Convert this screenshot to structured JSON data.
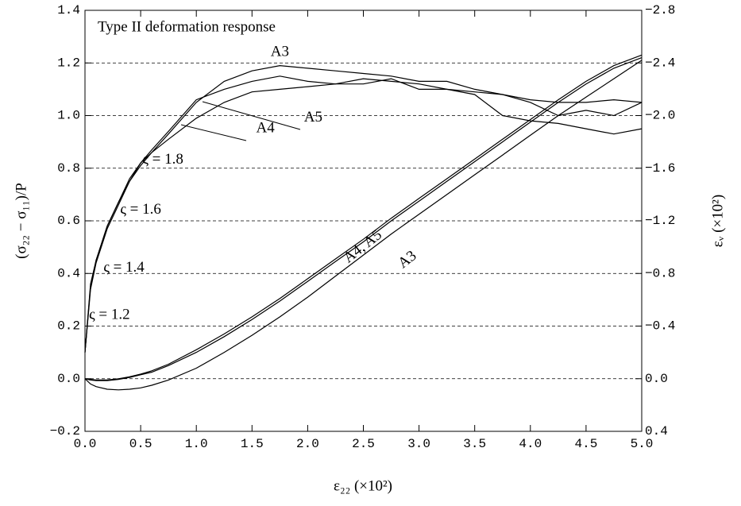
{
  "chart_data": {
    "type": "line",
    "title": "Type II deformation response",
    "x_label": "ε₂₂ (×10²)",
    "y_label": "(σ₂₂ − σ₁₁)/P",
    "y2_label": "εᵥ  (×10²)",
    "x": [
      0,
      0.05,
      0.1,
      0.2,
      0.3,
      0.4,
      0.5,
      0.6,
      0.75,
      1.0,
      1.25,
      1.5,
      1.75,
      2.0,
      2.25,
      2.5,
      2.75,
      3.0,
      3.25,
      3.5,
      3.75,
      4.0,
      4.25,
      4.5,
      4.75,
      5.0
    ],
    "series": [
      {
        "color": "#000",
        "values": [
          0.1,
          0.35,
          0.45,
          0.58,
          0.67,
          0.75,
          0.81,
          0.86,
          0.93,
          1.05,
          1.13,
          1.17,
          1.19,
          1.18,
          1.17,
          1.16,
          1.15,
          1.13,
          1.13,
          1.1,
          1.08,
          1.06,
          1.05,
          1.05,
          1.06,
          1.05
        ]
      },
      {
        "color": "#000",
        "values": [
          0.1,
          0.34,
          0.44,
          0.57,
          0.66,
          0.75,
          0.82,
          0.86,
          0.91,
          0.99,
          1.05,
          1.09,
          1.1,
          1.11,
          1.12,
          1.12,
          1.14,
          1.1,
          1.1,
          1.08,
          1.0,
          0.98,
          0.97,
          0.95,
          0.93,
          0.95
        ]
      },
      {
        "color": "#000",
        "values": [
          0.1,
          0.36,
          0.45,
          0.58,
          0.67,
          0.76,
          0.82,
          0.87,
          0.94,
          1.06,
          1.1,
          1.13,
          1.15,
          1.13,
          1.12,
          1.14,
          1.13,
          1.12,
          1.1,
          1.09,
          1.08,
          1.05,
          1.0,
          1.02,
          1.0,
          1.05
        ]
      },
      {
        "color": "#000",
        "axis": "y2",
        "values": [
          0,
          0.04,
          0.06,
          0.08,
          0.085,
          0.08,
          0.07,
          0.05,
          0.01,
          -0.08,
          -0.2,
          -0.33,
          -0.47,
          -0.62,
          -0.78,
          -0.94,
          -1.1,
          -1.25,
          -1.4,
          -1.55,
          -1.7,
          -1.85,
          -2.0,
          -2.14,
          -2.28,
          -2.42
        ]
      },
      {
        "color": "#000",
        "axis": "y2",
        "values": [
          0,
          0.01,
          0.015,
          0.015,
          0.005,
          -0.01,
          -0.03,
          -0.05,
          -0.1,
          -0.2,
          -0.32,
          -0.45,
          -0.59,
          -0.74,
          -0.89,
          -1.04,
          -1.2,
          -1.35,
          -1.5,
          -1.65,
          -1.8,
          -1.95,
          -2.1,
          -2.24,
          -2.36,
          -2.44
        ]
      },
      {
        "color": "#000",
        "axis": "y2",
        "values": [
          0,
          0.005,
          0.01,
          0.01,
          0,
          -0.015,
          -0.035,
          -0.06,
          -0.11,
          -0.22,
          -0.34,
          -0.47,
          -0.61,
          -0.76,
          -0.91,
          -1.06,
          -1.22,
          -1.37,
          -1.52,
          -1.67,
          -1.82,
          -1.97,
          -2.12,
          -2.26,
          -2.38,
          -2.46
        ]
      }
    ],
    "annotations": [
      {
        "text": "A3",
        "x": 1.75,
        "y": 1.24
      },
      {
        "text": "A5",
        "x": 2.05,
        "y": 0.99
      },
      {
        "text": "A4",
        "x": 1.62,
        "y": 0.95
      },
      {
        "text": "ς = 1.8",
        "x": 0.7,
        "y": 0.83
      },
      {
        "text": "ς = 1.6",
        "x": 0.5,
        "y": 0.64
      },
      {
        "text": "ς = 1.4",
        "x": 0.35,
        "y": 0.42
      },
      {
        "text": "ς = 1.2",
        "x": 0.22,
        "y": 0.24
      },
      {
        "text": "A4, A5",
        "x": 2.5,
        "y": 0.5,
        "rotate": -38
      },
      {
        "text": "A3",
        "x": 2.9,
        "y": 0.45,
        "rotate": -38
      }
    ],
    "xlim": [
      0,
      5
    ],
    "xticks": [
      {
        "value": 0,
        "label": "0.0"
      },
      0.5,
      {
        "value": 1,
        "label": "1.0"
      },
      1.5,
      {
        "value": 2,
        "label": "2.0"
      },
      2.5,
      {
        "value": 3,
        "label": "3.0"
      },
      3.5,
      {
        "value": 4,
        "label": "4.0"
      },
      4.5,
      {
        "value": 5,
        "label": "5.0"
      }
    ],
    "ylim": [
      -0.2,
      1.4
    ],
    "yticks": [
      {
        "value": -0.2,
        "label": "−0.2"
      },
      {
        "value": 0,
        "label": "0.0"
      },
      0.2,
      0.4,
      0.6,
      0.8,
      {
        "value": 1,
        "label": "1.0"
      },
      1.2,
      {
        "value": 1.4,
        "label": "1.4"
      }
    ],
    "y2lim": [
      0.4,
      -2.8
    ],
    "y2ticks": [
      0.4,
      {
        "value": 0,
        "label": "0.0"
      },
      {
        "value": -0.4,
        "label": "−0.4"
      },
      {
        "value": -0.8,
        "label": "−0.8"
      },
      {
        "value": -1.2,
        "label": "−1.2"
      },
      {
        "value": -1.6,
        "label": "−1.6"
      },
      {
        "value": -2,
        "label": "−2.0"
      },
      {
        "value": -2.4,
        "label": "−2.4"
      },
      {
        "value": -2.8,
        "label": "−2.8"
      }
    ],
    "grid": true
  }
}
